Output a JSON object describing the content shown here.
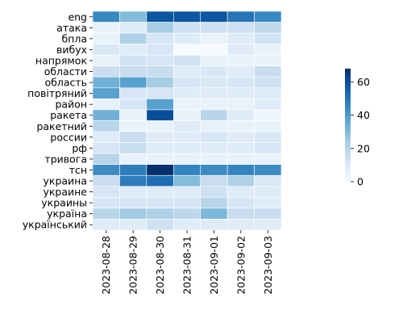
{
  "chart_data": {
    "type": "heatmap",
    "title": "",
    "xlabel": "",
    "ylabel": "",
    "categories_x": [
      "2023-08-28",
      "2023-08-29",
      "2023-08-30",
      "2023-08-31",
      "2023-09-01",
      "2023-09-02",
      "2023-09-03"
    ],
    "categories_y": [
      "eng",
      "атака",
      "бпла",
      "вибух",
      "напрямок",
      "области",
      "область",
      "повітряний",
      "район",
      "ракета",
      "ракетний",
      "россии",
      "рф",
      "тривога",
      "тсн",
      "украина",
      "украине",
      "украины",
      "україна",
      "український"
    ],
    "values": [
      [
        45,
        30,
        58,
        58,
        58,
        50,
        45
      ],
      [
        5,
        8,
        24,
        14,
        14,
        14,
        18
      ],
      [
        5,
        22,
        11,
        8,
        5,
        8,
        13
      ],
      [
        10,
        8,
        11,
        0,
        0,
        8,
        5
      ],
      [
        5,
        13,
        11,
        13,
        5,
        5,
        5
      ],
      [
        15,
        16,
        16,
        8,
        10,
        8,
        16
      ],
      [
        33,
        38,
        24,
        11,
        10,
        11,
        14
      ],
      [
        38,
        11,
        11,
        8,
        8,
        8,
        8
      ],
      [
        5,
        11,
        38,
        5,
        5,
        5,
        8
      ],
      [
        33,
        5,
        60,
        5,
        20,
        8,
        3
      ],
      [
        20,
        5,
        5,
        8,
        5,
        5,
        5
      ],
      [
        8,
        16,
        8,
        8,
        11,
        8,
        10
      ],
      [
        11,
        16,
        8,
        8,
        8,
        8,
        11
      ],
      [
        20,
        5,
        5,
        5,
        5,
        5,
        5
      ],
      [
        44,
        48,
        68,
        46,
        44,
        46,
        44
      ],
      [
        16,
        48,
        52,
        30,
        16,
        22,
        10
      ],
      [
        11,
        8,
        8,
        8,
        14,
        8,
        8
      ],
      [
        11,
        11,
        11,
        11,
        20,
        11,
        8
      ],
      [
        20,
        25,
        22,
        19,
        31,
        16,
        16
      ],
      [
        8,
        8,
        14,
        8,
        8,
        8,
        8
      ]
    ],
    "vmin": 0,
    "vmax": 68,
    "colormap": "Blues",
    "colorbar_ticks": [
      0,
      20,
      40,
      60
    ],
    "legend_position": "right",
    "grid": false
  }
}
